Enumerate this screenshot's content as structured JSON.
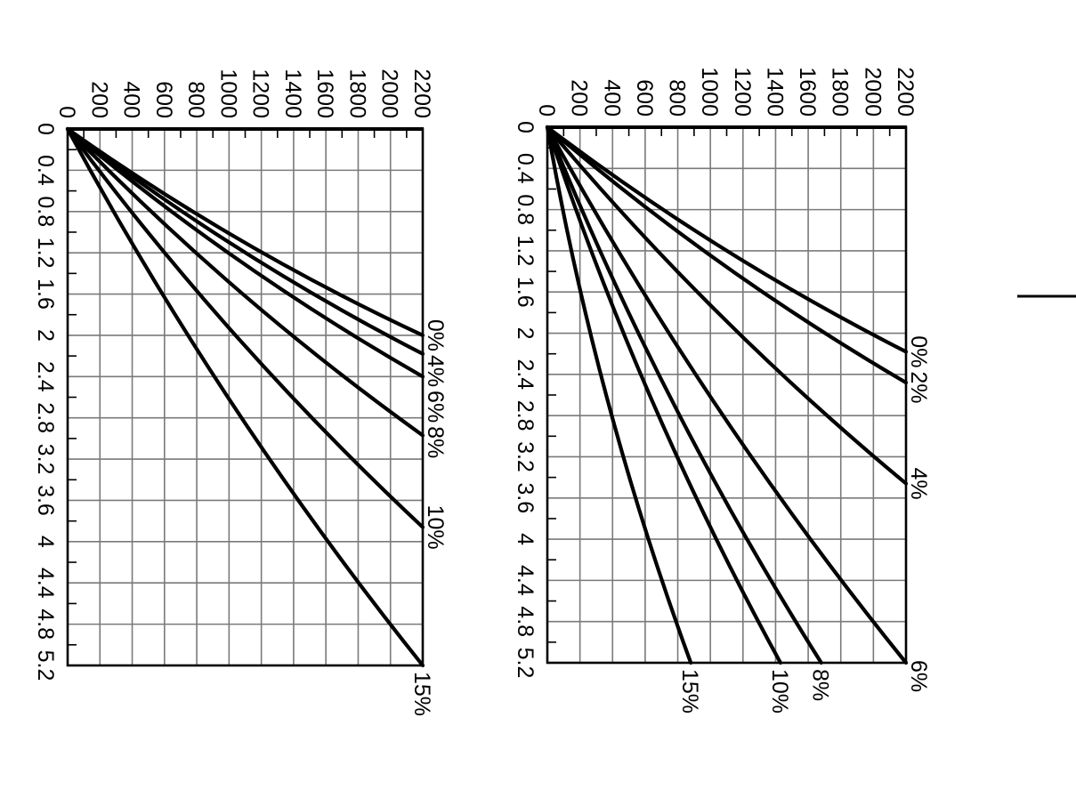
{
  "page": {
    "background_color": "#ffffff",
    "decorations": [
      {
        "name": "page-rule",
        "type": "horizontal-line",
        "color": "#000000"
      }
    ]
  },
  "chart_data": [
    {
      "id": "left-chart",
      "type": "line",
      "title": "",
      "orientation": "rotated-90-clockwise",
      "grid": true,
      "line_color": "#000000",
      "grid_color": "#7a7a7a",
      "distance_axis": {
        "min": 0,
        "max": 2200,
        "major_step": 200,
        "minor_step": 100,
        "tick_labels": [
          "0",
          "200",
          "400",
          "600",
          "800",
          "1000",
          "1200",
          "1400",
          "1600",
          "1800",
          "2000",
          "2200"
        ]
      },
      "time_axis": {
        "min": 0,
        "max": 5.2,
        "major_step": 0.4,
        "minor_step": 0.2,
        "tick_labels": [
          "0",
          "0.4",
          "0.8",
          "1.2",
          "1.6",
          "2",
          "2.4",
          "2.8",
          "3.2",
          "3.6",
          "4",
          "4.4",
          "4.8",
          "5.2"
        ]
      },
      "series": [
        {
          "label": "0%",
          "start": [
            0,
            0
          ],
          "end": [
            2.0,
            2200
          ],
          "label_side": "right"
        },
        {
          "label": "4%",
          "start": [
            0,
            0
          ],
          "end": [
            2.18,
            2200
          ],
          "label_side": "right"
        },
        {
          "label": "6%",
          "start": [
            0,
            0
          ],
          "end": [
            2.4,
            2200
          ],
          "label_side": "right"
        },
        {
          "label": "8%",
          "start": [
            0,
            0
          ],
          "end": [
            2.97,
            2200
          ],
          "label_side": "right"
        },
        {
          "label": "10%",
          "start": [
            0,
            0
          ],
          "end": [
            3.86,
            2200
          ],
          "label_side": "right"
        },
        {
          "label": "15%",
          "start": [
            0,
            0
          ],
          "end": [
            5.2,
            2200
          ],
          "label_side": "bottom"
        }
      ]
    },
    {
      "id": "right-chart",
      "type": "line",
      "title": "",
      "orientation": "rotated-90-clockwise",
      "grid": true,
      "line_color": "#000000",
      "grid_color": "#7a7a7a",
      "distance_axis": {
        "min": 0,
        "max": 2200,
        "major_step": 200,
        "minor_step": 100,
        "tick_labels": [
          "0",
          "200",
          "400",
          "600",
          "800",
          "1000",
          "1200",
          "1400",
          "1600",
          "1800",
          "2000",
          "2200"
        ]
      },
      "time_axis": {
        "min": 0,
        "max": 5.2,
        "major_step": 0.4,
        "minor_step": 0.2,
        "tick_labels": [
          "0",
          "0.4",
          "0.8",
          "1.2",
          "1.6",
          "2",
          "2.4",
          "2.8",
          "3.2",
          "3.6",
          "4",
          "4.4",
          "4.8",
          "5.2"
        ]
      },
      "series": [
        {
          "label": "0%",
          "start": [
            0,
            0
          ],
          "end": [
            2.18,
            2200
          ],
          "label_side": "right"
        },
        {
          "label": "2%",
          "start": [
            0,
            0
          ],
          "end": [
            2.48,
            2200
          ],
          "label_side": "right"
        },
        {
          "label": "4%",
          "start": [
            0,
            0
          ],
          "end": [
            3.46,
            2200
          ],
          "label_side": "right"
        },
        {
          "label": "6%",
          "start": [
            0,
            0
          ],
          "end": [
            5.2,
            2200
          ],
          "label_side": "corner-right"
        },
        {
          "label": "8%",
          "start": [
            0,
            0
          ],
          "end": [
            5.2,
            1680
          ],
          "label_side": "bottom"
        },
        {
          "label": "10%",
          "start": [
            0,
            0
          ],
          "end": [
            5.2,
            1430
          ],
          "label_side": "bottom"
        },
        {
          "label": "15%",
          "start": [
            0,
            0
          ],
          "end": [
            5.2,
            880
          ],
          "label_side": "bottom"
        }
      ]
    }
  ]
}
